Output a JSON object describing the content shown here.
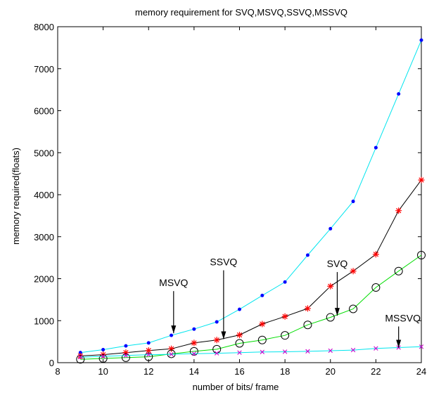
{
  "chart_data": {
    "type": "line",
    "title": "memory requirement for SVQ,MSVQ,SSVQ,MSSVQ",
    "xlabel": "number of bits/ frame",
    "ylabel": "memory required(floats)",
    "xlim": [
      8,
      24
    ],
    "ylim": [
      0,
      8000
    ],
    "xticks": [
      8,
      10,
      12,
      14,
      16,
      18,
      20,
      22,
      24
    ],
    "yticks": [
      0,
      1000,
      2000,
      3000,
      4000,
      5000,
      6000,
      7000,
      8000
    ],
    "grid": false,
    "x": [
      9,
      10,
      11,
      12,
      13,
      14,
      15,
      16,
      17,
      18,
      19,
      20,
      21,
      22,
      23,
      24
    ],
    "series": [
      {
        "color": "#00e5ee",
        "marker_color": "#0000ff",
        "marker": "dot",
        "values": [
          240,
          310,
          400,
          470,
          650,
          800,
          970,
          1270,
          1600,
          1920,
          2560,
          3190,
          3840,
          5120,
          6400,
          7680
        ]
      },
      {
        "color": "#000000",
        "marker_color": "#ff0000",
        "marker": "star",
        "values": [
          160,
          190,
          240,
          290,
          330,
          470,
          540,
          660,
          920,
          1100,
          1290,
          1820,
          2180,
          2580,
          3620,
          4350
        ]
      },
      {
        "color": "#00dd00",
        "marker_color": "#000000",
        "marker": "circle",
        "values": [
          80,
          100,
          120,
          140,
          210,
          270,
          320,
          460,
          540,
          650,
          900,
          1080,
          1280,
          1790,
          2180,
          2560
        ]
      },
      {
        "color": "#00e5ee",
        "marker_color": "#cc00cc",
        "marker": "x",
        "values": [
          130,
          150,
          170,
          190,
          200,
          215,
          225,
          240,
          255,
          260,
          270,
          285,
          300,
          340,
          360,
          380
        ]
      }
    ],
    "annotations": [
      {
        "text": "MSVQ",
        "arrow_x": 13.1,
        "arrow_y": 700
      },
      {
        "text": "SSVQ",
        "arrow_x": 15.3,
        "arrow_y": 560
      },
      {
        "text": "SVQ",
        "arrow_x": 20.3,
        "arrow_y": 1120
      },
      {
        "text": "MSSVQ",
        "arrow_x": 23.0,
        "arrow_y": 360
      }
    ]
  }
}
